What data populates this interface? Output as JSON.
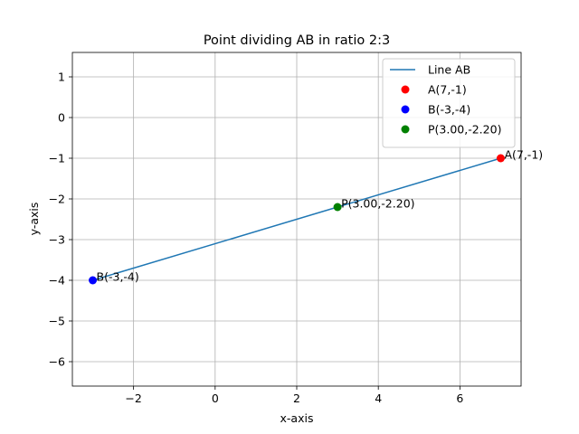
{
  "chart_data": {
    "type": "scatter",
    "title": "Point dividing AB in ratio 2:3",
    "xlabel": "x-axis",
    "ylabel": "y-axis",
    "xlim": [
      -3.5,
      7.5
    ],
    "ylim": [
      -6.6,
      1.6
    ],
    "xticks": [
      -2,
      0,
      2,
      4,
      6
    ],
    "yticks": [
      -6,
      -5,
      -4,
      -3,
      -2,
      -1,
      0,
      1
    ],
    "grid": true,
    "legend_position": "top-right",
    "series": [
      {
        "name": "Line AB",
        "kind": "line",
        "color": "#1f77b4",
        "x": [
          7,
          -3
        ],
        "y": [
          -1,
          -4
        ]
      },
      {
        "name": "A(7,-1)",
        "kind": "point",
        "color": "#ff0000",
        "x": [
          7
        ],
        "y": [
          -1
        ]
      },
      {
        "name": "B(-3,-4)",
        "kind": "point",
        "color": "#0000ff",
        "x": [
          -3
        ],
        "y": [
          -4
        ]
      },
      {
        "name": "P(3.00,-2.20)",
        "kind": "point",
        "color": "#008000",
        "x": [
          3.0
        ],
        "y": [
          -2.2
        ]
      }
    ],
    "annotations": [
      {
        "text": "A(7,-1)",
        "x": 7,
        "y": -1
      },
      {
        "text": "B(-3,-4)",
        "x": -3,
        "y": -4
      },
      {
        "text": "P(3.00,-2.20)",
        "x": 3.0,
        "y": -2.2
      }
    ]
  }
}
